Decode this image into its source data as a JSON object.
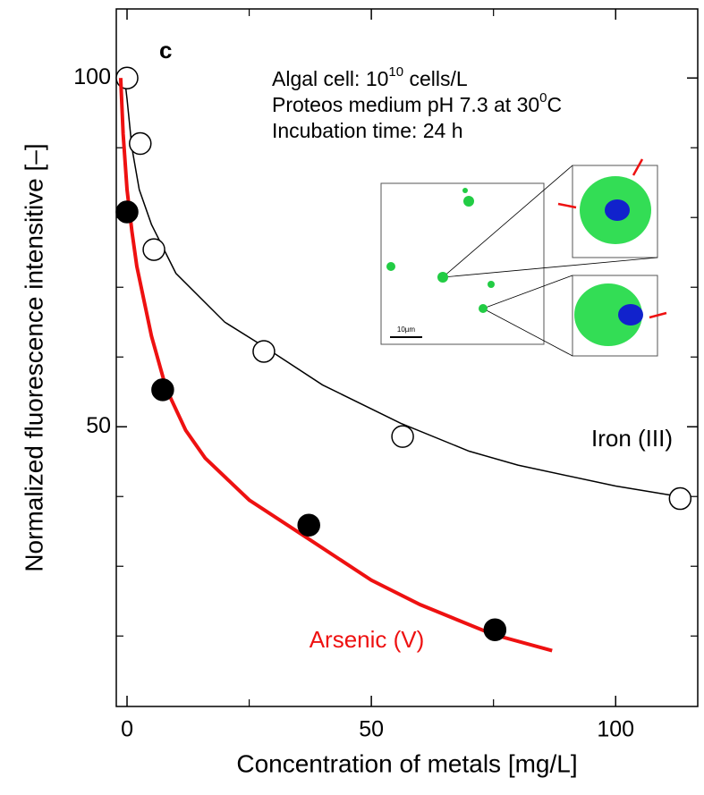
{
  "chart_data": {
    "type": "scatter",
    "panel_label": "c",
    "x_label": "Concentration of metals [mg/L]",
    "y_label": "Normalized fluorescence intensitive [–]",
    "annotations": [
      {
        "text": "Algal cell: 10",
        "sup": "10",
        "after": " cells/L"
      },
      {
        "text": "Proteos medium pH 7.3 at 30",
        "sup": "0",
        "after": "C"
      },
      {
        "text": "Incubation time: 24 h"
      }
    ],
    "inset_scale_label": "10µm",
    "xlim": [
      -2.2,
      116.8
    ],
    "ylim": [
      9.9,
      109.9
    ],
    "xticks": [
      0,
      50,
      100
    ],
    "xminor_ticks": [
      25,
      75
    ],
    "yticks": [
      50,
      100
    ],
    "yminor_ticks": [
      20,
      30,
      40,
      60,
      70,
      80,
      90
    ],
    "series": [
      {
        "name": "Iron (III)",
        "color": "#000000",
        "marker": "open",
        "x": [
          0,
          2.7,
          5.5,
          28,
          56.4,
          113.2
        ],
        "values": [
          100,
          90.6,
          75.4,
          60.8,
          48.6,
          39.7
        ],
        "fit_x": [
          -0.5,
          0,
          1,
          2.5,
          5,
          10,
          20,
          28,
          40,
          56,
          70,
          80,
          100,
          113
        ],
        "fit_values": [
          100,
          97,
          90,
          84,
          79,
          72,
          65,
          61.5,
          56,
          50.5,
          46.5,
          44.5,
          41.5,
          40
        ]
      },
      {
        "name": "Arsenic (V)",
        "color": "#ee1111",
        "marker": "filled",
        "x": [
          0,
          7.3,
          37.2,
          75.3
        ],
        "values": [
          80.8,
          55.3,
          35.9,
          20.9
        ],
        "fit_x": [
          -1.3,
          -0.8,
          0,
          1,
          2,
          3.5,
          5,
          8,
          12,
          16,
          25,
          37,
          50,
          60,
          75,
          87
        ],
        "fit_values": [
          100,
          92,
          84,
          78,
          73,
          68,
          63,
          55.5,
          49.5,
          45.5,
          39.5,
          34,
          28,
          24.5,
          20.2,
          17.9
        ]
      }
    ]
  }
}
